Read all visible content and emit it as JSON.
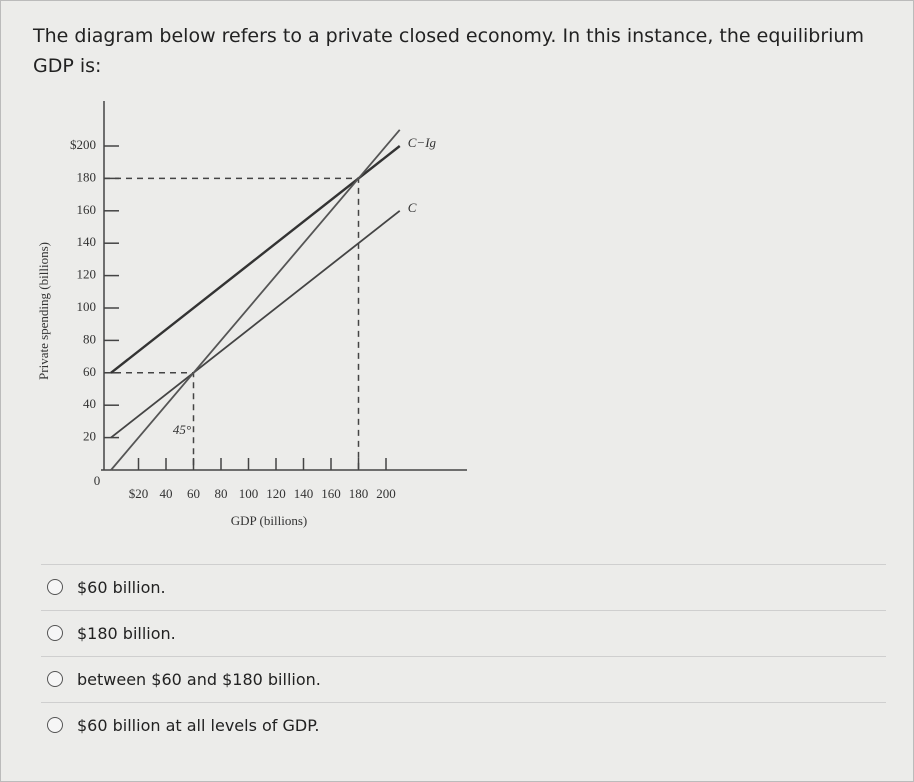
{
  "question": "The diagram below refers to a private closed economy. In this instance, the equilibrium GDP is:",
  "chart_data": {
    "type": "line",
    "x_label": "GDP (billions)",
    "y_label": "Private spending (billions)",
    "x": [
      0,
      210
    ],
    "series": [
      {
        "name": "C−Ig",
        "color": "#333333",
        "values": [
          60,
          200
        ]
      },
      {
        "name": "C",
        "color": "#444444",
        "values": [
          20,
          160
        ]
      },
      {
        "name": "45°",
        "color": "#555555",
        "values": [
          0,
          210
        ]
      }
    ],
    "guides": [
      {
        "x": 60,
        "y": 60
      },
      {
        "x": 180,
        "y": 180
      }
    ],
    "xlim": [
      0,
      250
    ],
    "ylim": [
      0,
      230
    ],
    "xticks": [
      0,
      {
        "value": 20,
        "label": "$20"
      },
      40,
      60,
      80,
      100,
      120,
      140,
      160,
      180,
      {
        "value": 200,
        "label": "200"
      }
    ],
    "yticks": [
      20,
      40,
      60,
      80,
      100,
      120,
      140,
      160,
      180,
      {
        "value": 200,
        "label": "$200"
      }
    ]
  },
  "options": [
    "$60 billion.",
    "$180 billion.",
    "between $60 and $180 billion.",
    "$60 billion at all levels of GDP."
  ]
}
